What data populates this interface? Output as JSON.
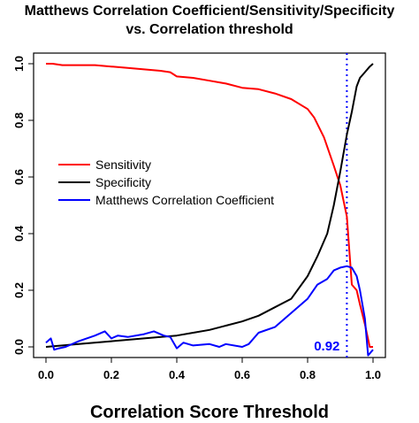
{
  "chart_data": {
    "type": "line",
    "title": "Matthews Correlation Coefficient/Sensitivity/Specificity",
    "subtitle": "vs. Correlation threshold",
    "xlabel": "Correlation Score Threshold",
    "ylabel": "",
    "xlim": [
      0,
      1
    ],
    "ylim": [
      0,
      1
    ],
    "x_ticks": [
      "0.0",
      "0.2",
      "0.4",
      "0.6",
      "0.8",
      "1.0"
    ],
    "y_ticks": [
      "0.0",
      "0.2",
      "0.4",
      "0.6",
      "0.8",
      "1.0"
    ],
    "legend_position": "center-left",
    "grid": false,
    "threshold_line": {
      "x": 0.92,
      "label": "0.92",
      "color": "#0000ff"
    },
    "series": [
      {
        "name": "Sensitivity",
        "color": "#ff0000",
        "x": [
          0.0,
          0.02,
          0.05,
          0.1,
          0.15,
          0.2,
          0.25,
          0.3,
          0.35,
          0.38,
          0.4,
          0.45,
          0.5,
          0.55,
          0.6,
          0.65,
          0.7,
          0.75,
          0.8,
          0.82,
          0.85,
          0.88,
          0.9,
          0.92,
          0.935,
          0.95,
          0.96,
          0.975,
          0.99,
          1.0
        ],
        "values": [
          1.0,
          1.0,
          0.995,
          0.995,
          0.995,
          0.99,
          0.985,
          0.98,
          0.975,
          0.97,
          0.955,
          0.95,
          0.94,
          0.93,
          0.915,
          0.91,
          0.895,
          0.875,
          0.84,
          0.81,
          0.74,
          0.64,
          0.57,
          0.46,
          0.22,
          0.2,
          0.15,
          0.08,
          0.0,
          0.0
        ]
      },
      {
        "name": "Specificity",
        "color": "#000000",
        "x": [
          0.0,
          0.1,
          0.2,
          0.3,
          0.4,
          0.45,
          0.5,
          0.55,
          0.6,
          0.65,
          0.7,
          0.75,
          0.8,
          0.83,
          0.86,
          0.88,
          0.9,
          0.92,
          0.935,
          0.95,
          0.96,
          0.975,
          0.99,
          1.0
        ],
        "values": [
          0.0,
          0.01,
          0.02,
          0.03,
          0.04,
          0.05,
          0.06,
          0.075,
          0.09,
          0.11,
          0.14,
          0.17,
          0.25,
          0.32,
          0.4,
          0.5,
          0.62,
          0.75,
          0.83,
          0.92,
          0.95,
          0.97,
          0.99,
          1.0
        ]
      },
      {
        "name": "Matthews Correlation Coefficient",
        "color": "#0000ff",
        "x": [
          0.0,
          0.015,
          0.025,
          0.04,
          0.06,
          0.1,
          0.15,
          0.18,
          0.2,
          0.22,
          0.25,
          0.3,
          0.33,
          0.36,
          0.38,
          0.4,
          0.42,
          0.45,
          0.5,
          0.53,
          0.55,
          0.6,
          0.62,
          0.65,
          0.7,
          0.75,
          0.8,
          0.83,
          0.86,
          0.88,
          0.9,
          0.92,
          0.935,
          0.95,
          0.96,
          0.975,
          0.985,
          1.0
        ],
        "values": [
          0.015,
          0.03,
          -0.01,
          -0.005,
          0.0,
          0.02,
          0.04,
          0.055,
          0.03,
          0.04,
          0.035,
          0.045,
          0.055,
          0.04,
          0.035,
          -0.005,
          0.015,
          0.005,
          0.01,
          0.0,
          0.01,
          0.0,
          0.01,
          0.05,
          0.07,
          0.12,
          0.17,
          0.22,
          0.24,
          0.27,
          0.28,
          0.285,
          0.28,
          0.25,
          0.2,
          0.1,
          -0.03,
          -0.01
        ]
      }
    ]
  }
}
